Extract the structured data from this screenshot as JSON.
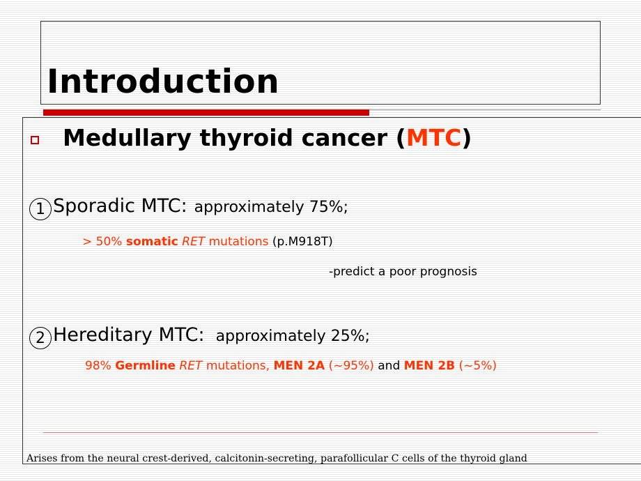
{
  "slide": {
    "title": "Introduction",
    "heading_prefix": "Medullary thyroid cancer (",
    "heading_abbr": "MTC",
    "heading_suffix": ")",
    "sporadic": {
      "marker": "1",
      "label": "Sporadic MTC:",
      "share": "approximately 75%;",
      "detail_prefix": "> 50% ",
      "detail_bold": "somatic",
      "detail_gene": "RET",
      "detail_mid": " mutations ",
      "detail_variant": "(p.M918T)",
      "prognosis": "-predict a poor prognosis"
    },
    "hereditary": {
      "marker": "2",
      "label": "Hereditary MTC:",
      "share": "approximately 25%;",
      "detail_prefix": "98% ",
      "detail_bold": "Germline",
      "detail_gene": "RET",
      "detail_mid": " mutations, ",
      "men2a": "MEN 2A",
      "men2a_pct": "(~95%)",
      "and_text": " and ",
      "men2b": "MEN 2B",
      "men2b_pct": "(~5%)"
    },
    "footnote": "Arises from the neural crest-derived, calcitonin-secreting, parafollicular C cells of the thyroid gland"
  },
  "colors": {
    "accent_red": "#cc0000",
    "highlight_orange": "#ff3300"
  },
  "icons": {
    "bullet": "hollow-square-bullet-icon"
  }
}
